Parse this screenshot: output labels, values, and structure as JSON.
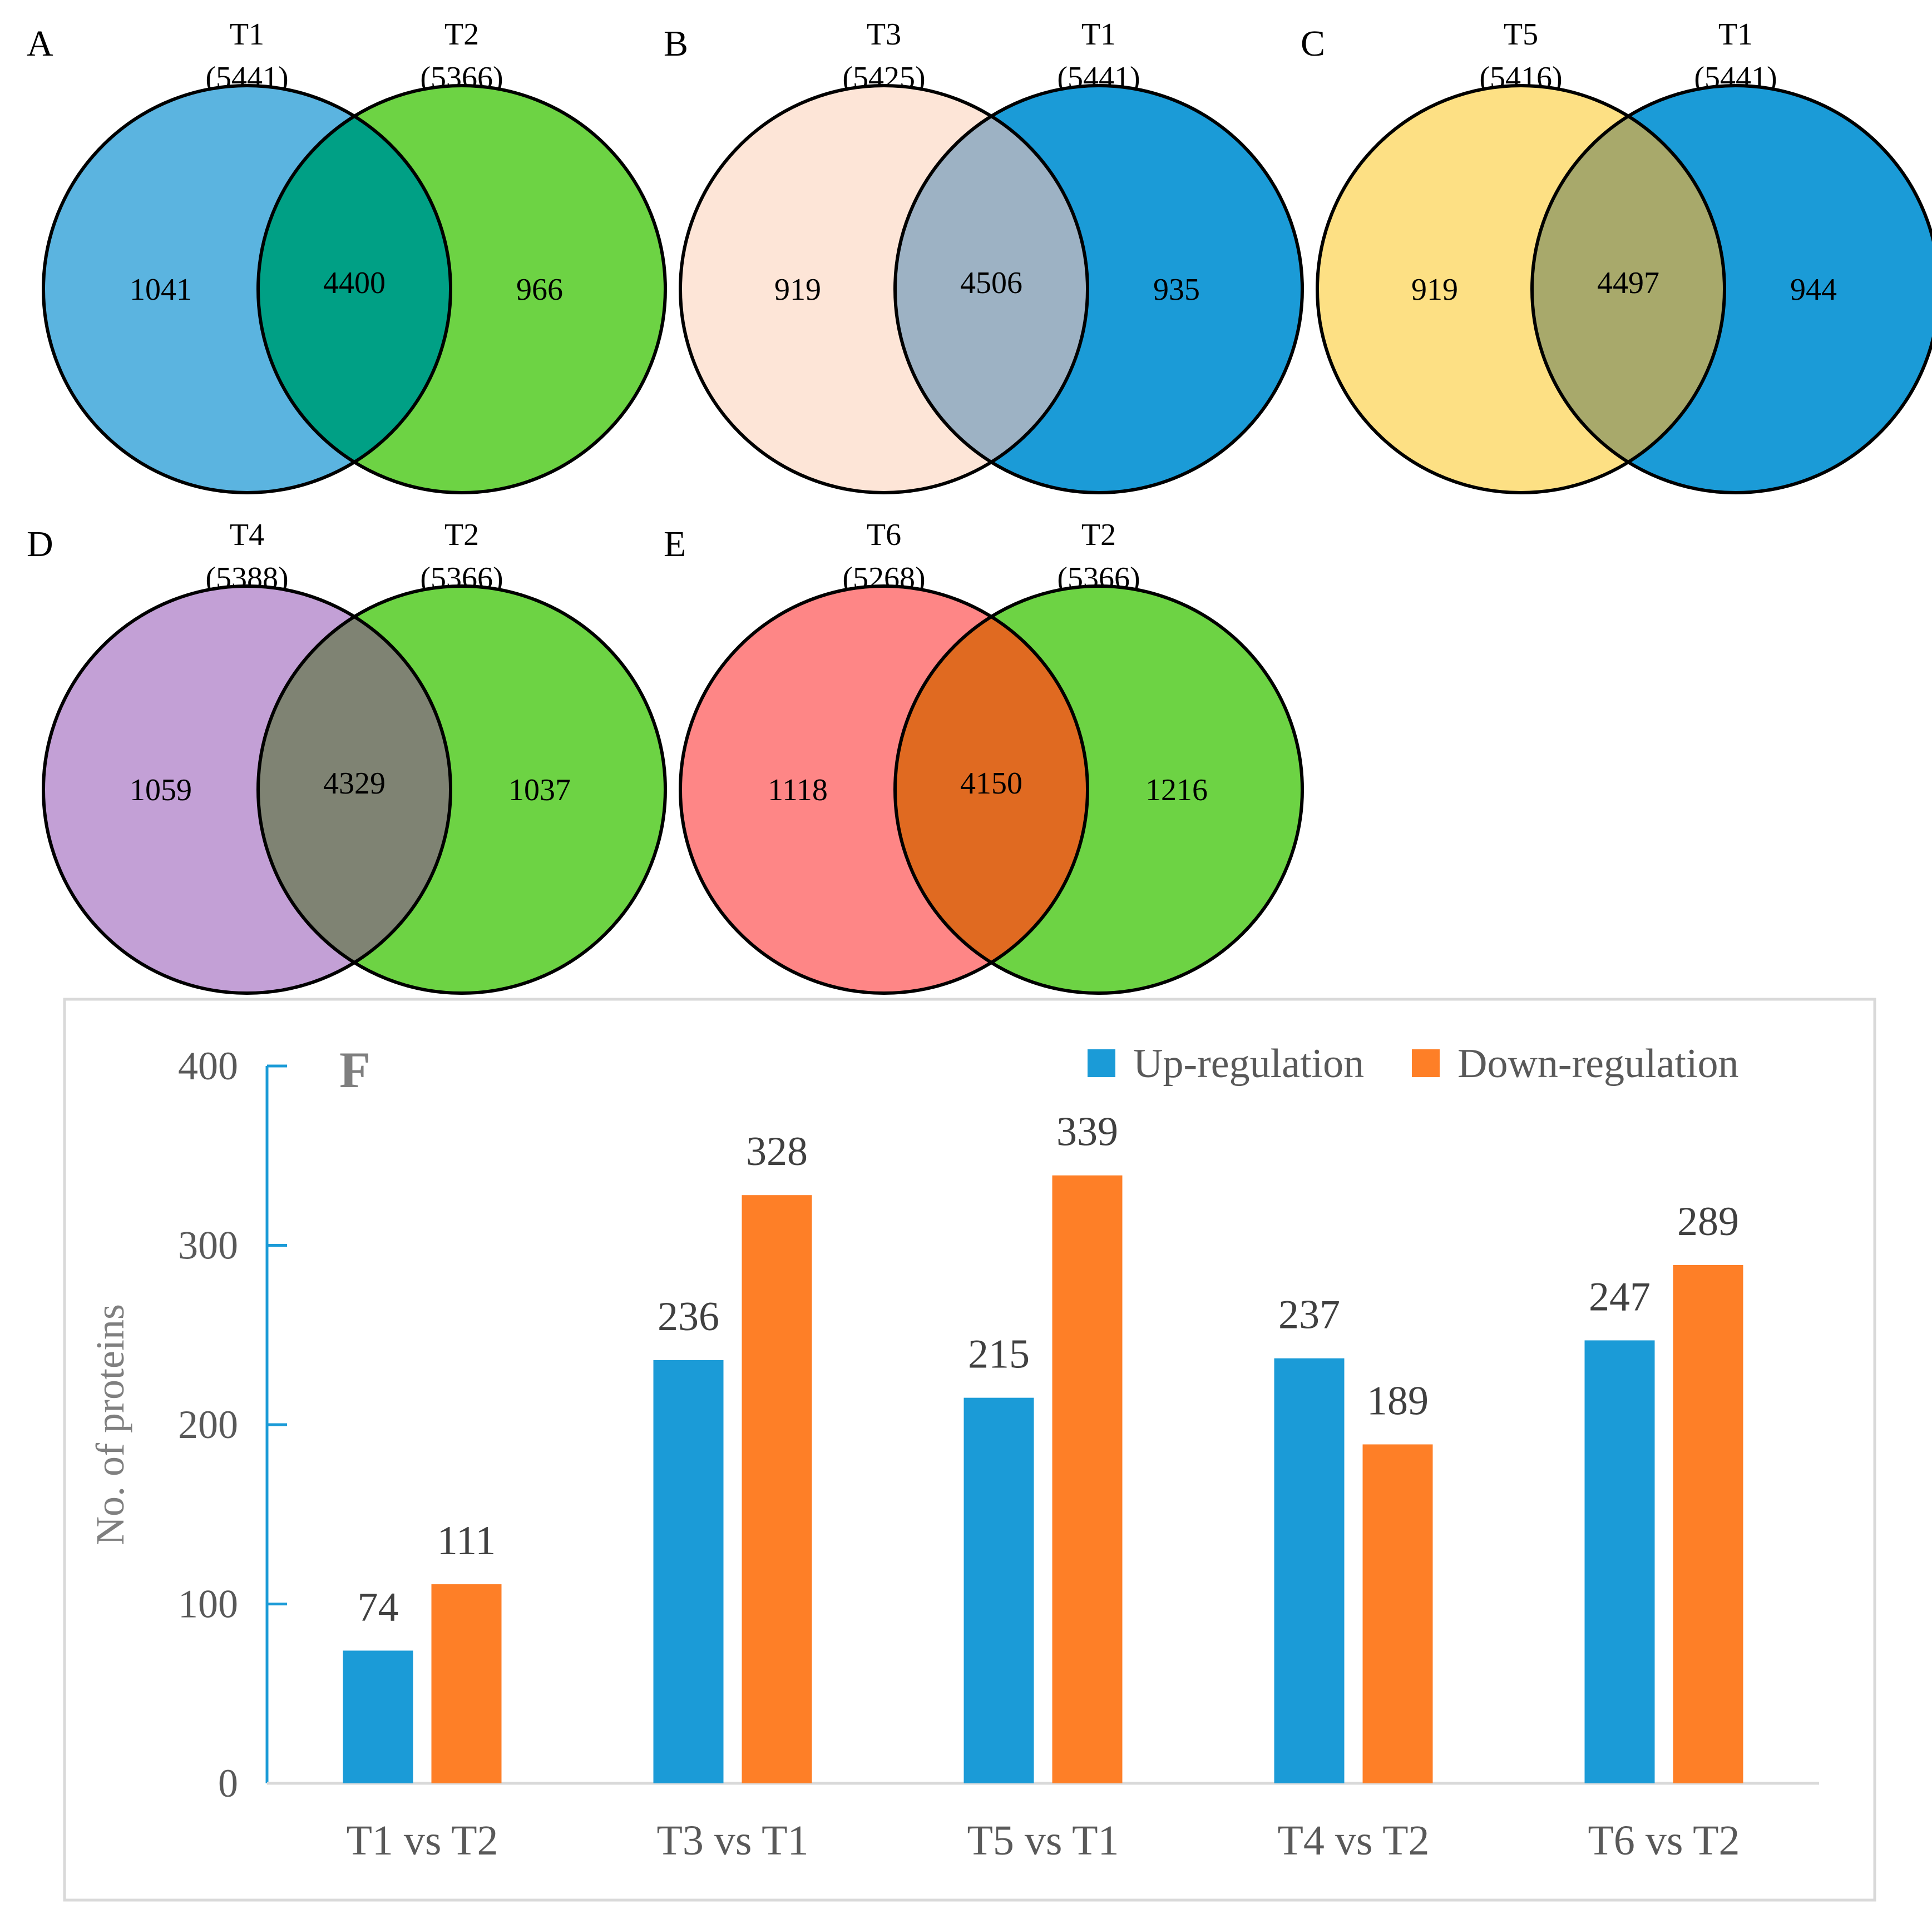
{
  "venn_panels": [
    {
      "letter": "A",
      "left": {
        "name": "T1",
        "total": "(5441)",
        "only": "1041",
        "color": "#5bb4e0"
      },
      "right": {
        "name": "T2",
        "total": "(5366)",
        "only": "966",
        "color": "#6dd344"
      },
      "overlap": {
        "count": "4400",
        "color": "#00a085"
      }
    },
    {
      "letter": "B",
      "left": {
        "name": "T3",
        "total": "(5425)",
        "only": "919",
        "color": "#fde5d7"
      },
      "right": {
        "name": "T1",
        "total": "(5441)",
        "only": "935",
        "color": "#1b9bd7"
      },
      "overlap": {
        "count": "4506",
        "color": "#9db2c4"
      }
    },
    {
      "letter": "C",
      "left": {
        "name": "T5",
        "total": "(5416)",
        "only": "919",
        "color": "#fde084"
      },
      "right": {
        "name": "T1",
        "total": "(5441)",
        "only": "944",
        "color": "#1b9bd7"
      },
      "overlap": {
        "count": "4497",
        "color": "#a8a96b"
      }
    },
    {
      "letter": "D",
      "left": {
        "name": "T4",
        "total": "(5388)",
        "only": "1059",
        "color": "#c3a0d6"
      },
      "right": {
        "name": "T2",
        "total": "(5366)",
        "only": "1037",
        "color": "#6dd344"
      },
      "overlap": {
        "count": "4329",
        "color": "#7f8373"
      }
    },
    {
      "letter": "E",
      "left": {
        "name": "T6",
        "total": "(5268)",
        "only": "1118",
        "color": "#fe8686"
      },
      "right": {
        "name": "T2",
        "total": "(5366)",
        "only": "1216",
        "color": "#6dd344"
      },
      "overlap": {
        "count": "4150",
        "color": "#e06a21"
      }
    }
  ],
  "chart_data": {
    "type": "bar",
    "panel_letter": "F",
    "title": "",
    "xlabel": "",
    "ylabel": "No. of proteins",
    "ylim": [
      0,
      400
    ],
    "yticks": [
      0,
      100,
      200,
      300,
      400
    ],
    "grid": false,
    "legend_position": "top-right",
    "categories": [
      "T1 vs T2",
      "T3 vs T1",
      "T5 vs T1",
      "T4 vs T2",
      "T6 vs T2"
    ],
    "series": [
      {
        "name": "Up-regulation",
        "color": "#1b9bd7",
        "values": [
          74,
          236,
          215,
          237,
          247
        ]
      },
      {
        "name": "Down-regulation",
        "color": "#fe7f27",
        "values": [
          111,
          328,
          339,
          189,
          289
        ]
      }
    ]
  }
}
